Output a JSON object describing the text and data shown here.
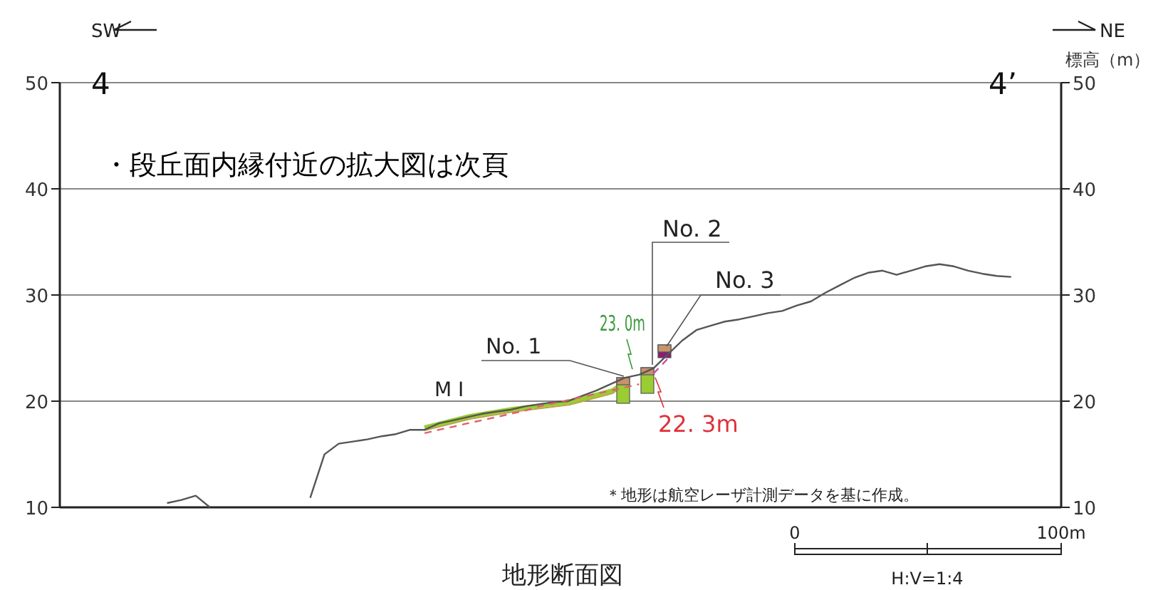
{
  "chart_data": {
    "type": "line",
    "title": "地形断面図",
    "y2label": "標高（m）",
    "categories": [
      null,
      null,
      null,
      null,
      null,
      null,
      null,
      null,
      null,
      null,
      null,
      null,
      null,
      null,
      null,
      null,
      null,
      null,
      null,
      null,
      null,
      null,
      null,
      null,
      null,
      null,
      null,
      null,
      null,
      null,
      null,
      null,
      null,
      null,
      null,
      null,
      null,
      null,
      null,
      null,
      null,
      null,
      null,
      null,
      null,
      null,
      null,
      null,
      null,
      null,
      null,
      null,
      null,
      null,
      null,
      null,
      null,
      null,
      null,
      null,
      null,
      null,
      null,
      null,
      null,
      null,
      null,
      null,
      null,
      null
    ],
    "series": [
      {
        "color": "#555555",
        "values": [
          null,
          null,
          null,
          null,
          null,
          null,
          null,
          10.4,
          10.7,
          11.1,
          10.0,
          null,
          null,
          null,
          null,
          null,
          null,
          null,
          null,
          null,
          null,
          null,
          null,
          null,
          null,
          null,
          null,
          null,
          null,
          null,
          null,
          null,
          null,
          null,
          null,
          null,
          null,
          null,
          null,
          null,
          null,
          null,
          null,
          null,
          null,
          null,
          null,
          null,
          null,
          null,
          null,
          null,
          null,
          null,
          null,
          null,
          null,
          null,
          null,
          null,
          null,
          null,
          null,
          null,
          null,
          null,
          null,
          null,
          null,
          null
        ]
      },
      {
        "color": "#555555",
        "values": [
          null,
          null,
          null,
          null,
          null,
          null,
          null,
          null,
          null,
          null,
          null,
          null,
          null,
          null,
          null,
          null,
          null,
          10.9,
          15.0,
          16.0,
          16.2,
          16.4,
          16.7,
          16.9,
          17.3,
          17.3,
          17.9,
          18.2,
          18.5,
          18.8,
          19.0,
          19.2,
          19.5,
          19.7,
          19.9,
          20.0,
          20.5,
          21.0,
          21.6,
          22.2,
          22.5,
          23.1,
          24.4,
          25.7,
          26.7,
          27.1,
          27.5,
          27.7,
          28.0,
          28.3,
          28.5,
          29.0,
          29.4,
          30.2,
          30.9,
          31.6,
          32.1,
          32.3,
          31.9,
          32.3,
          32.7,
          32.9,
          32.7,
          32.3,
          32.0,
          31.8,
          31.7,
          null,
          null,
          null
        ]
      },
      {
        "color": "#e06070",
        "line_style": "dashed",
        "values": [
          null,
          null,
          null,
          null,
          null,
          null,
          null,
          null,
          null,
          null,
          null,
          null,
          null,
          null,
          null,
          null,
          null,
          null,
          null,
          null,
          null,
          null,
          null,
          null,
          null,
          17.0,
          17.3,
          17.6,
          17.9,
          18.2,
          18.5,
          18.8,
          19.1,
          19.5,
          19.8,
          20.1,
          20.4,
          20.7,
          21.0,
          21.3,
          21.6,
          null,
          null,
          null,
          null,
          null,
          null,
          null,
          null,
          null,
          null,
          null,
          null,
          null,
          null,
          null,
          null,
          null,
          null,
          null,
          null,
          null,
          null,
          null,
          null,
          null,
          null,
          null,
          null,
          null
        ]
      },
      {
        "color": "#c050a0",
        "line_style": "dashed",
        "values": [
          null,
          null,
          null,
          null,
          null,
          null,
          null,
          null,
          null,
          null,
          null,
          null,
          null,
          null,
          null,
          null,
          null,
          null,
          null,
          null,
          null,
          null,
          null,
          null,
          null,
          null,
          null,
          null,
          null,
          null,
          null,
          null,
          null,
          null,
          null,
          null,
          null,
          null,
          null,
          null,
          null,
          22.6,
          24.0,
          null,
          null,
          null,
          null,
          null,
          null,
          null,
          null,
          null,
          null,
          null,
          null,
          null,
          null,
          null,
          null,
          null,
          null,
          null,
          null,
          null,
          null,
          null,
          null,
          null,
          null,
          null
        ]
      }
    ],
    "ylim": [
      10,
      50
    ],
    "yticks": [
      10,
      20,
      30,
      40,
      50
    ],
    "y2lim": [
      10,
      50
    ],
    "y2ticks": [
      10,
      20,
      30,
      40,
      50
    ],
    "grid": "y",
    "annotations": [
      "SW",
      "NE",
      "4",
      "4’",
      "・段丘面内縁付近の拡大図は次頁",
      "M I",
      "No. 1",
      "No. 2",
      "No. 3",
      {
        "text": "23. 0m",
        "y": 23.0
      },
      "22. 3m",
      "＊地形は航空レーザ計測データを基に作成。",
      "0",
      "100m",
      "H:V=1:4"
    ]
  }
}
